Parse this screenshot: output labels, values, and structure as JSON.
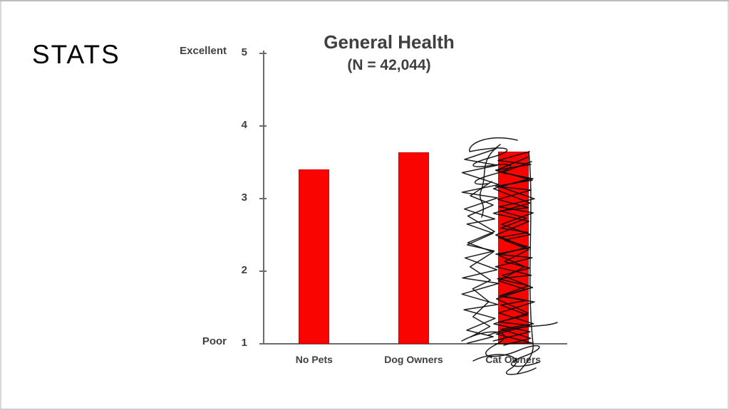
{
  "slide": {
    "heading": "STATS"
  },
  "chart_data": {
    "type": "bar",
    "title": "General Health",
    "subtitle": "(N = 42,044)",
    "categories": [
      "No Pets",
      "Dog Owners",
      "Cat Owners"
    ],
    "values": [
      3.4,
      3.64,
      3.65
    ],
    "ylim": [
      1,
      5
    ],
    "yticks": [
      1,
      2,
      3,
      4,
      5
    ],
    "ylabel_top": "Excellent",
    "ylabel_bottom": "Poor",
    "xlabel": "",
    "grid": "off",
    "legend": "none",
    "bar_color": "#f90400",
    "axis_color": "#6b6b6b",
    "text_color": "#3f3f3f",
    "annotation": {
      "type": "hand-drawn-scribble",
      "target": "Cat Owners",
      "color": "#111111"
    }
  }
}
